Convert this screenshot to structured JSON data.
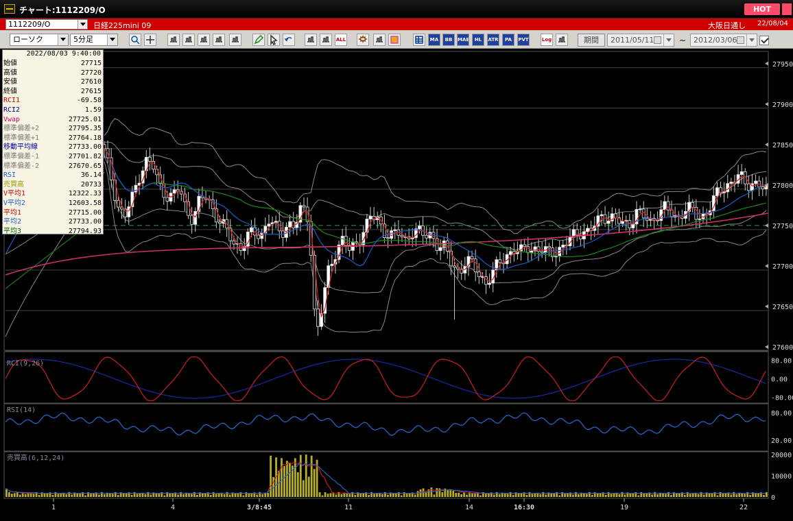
{
  "window": {
    "title": "チャート:1112209/O",
    "hot_label": "HOT"
  },
  "info_bar": {
    "symbol": "1112209/O",
    "instrument": "日経225mini 09",
    "market": "大阪日通し",
    "date": "22/08/04"
  },
  "toolbar": {
    "chart_type": "ローソク",
    "interval": "5分足",
    "indicator_buttons": [
      "MA",
      "BB",
      "MAE",
      "HL",
      "ATR",
      "PA RA",
      "PVT"
    ],
    "log_label": "Log",
    "all_label": "ALL",
    "period_label": "期間",
    "start_date": "2011/05/11",
    "end_date": "2012/03/06",
    "range_sep": "~"
  },
  "data_panel": {
    "timestamp": "2022/08/03 9:40:00",
    "rows": [
      {
        "label": "始値",
        "value": "27715",
        "color": "#000000"
      },
      {
        "label": "高値",
        "value": "27720",
        "color": "#000000"
      },
      {
        "label": "安値",
        "value": "27610",
        "color": "#000000"
      },
      {
        "label": "終値",
        "value": "27615",
        "color": "#000000"
      },
      {
        "label": "RCI1",
        "value": "-69.58",
        "color": "#cc0000"
      },
      {
        "label": "RCI2",
        "value": "1.59",
        "color": "#000099"
      },
      {
        "label": "Vwap",
        "value": "27725.01",
        "color": "#cc0066"
      },
      {
        "label": "標準偏差+2",
        "value": "27795.35",
        "color": "#777777"
      },
      {
        "label": "標準偏差+1",
        "value": "27764.18",
        "color": "#777777"
      },
      {
        "label": "移動平均線",
        "value": "27733.00",
        "color": "#000099"
      },
      {
        "label": "標準偏差-1",
        "value": "27701.82",
        "color": "#777777"
      },
      {
        "label": "標準偏差-2",
        "value": "27670.65",
        "color": "#777777"
      },
      {
        "label": "RSI",
        "value": "36.14",
        "color": "#1a5fc8"
      },
      {
        "label": "売買高",
        "value": "20733",
        "color": "#999900"
      },
      {
        "label": "V平均1",
        "value": "12322.33",
        "color": "#cc0000"
      },
      {
        "label": "V平均2",
        "value": "12603.58",
        "color": "#1a5fc8"
      },
      {
        "label": "平均1",
        "value": "27715.00",
        "color": "#cc0000"
      },
      {
        "label": "平均2",
        "value": "27733.00",
        "color": "#1a5fc8"
      },
      {
        "label": "平均3",
        "value": "27794.93",
        "color": "#006600"
      }
    ]
  },
  "panels": {
    "rci_label": "RCI(9,26)",
    "rsi_label": "RSI(14)",
    "volume_label": "売買高(6,12,24)"
  },
  "chart_data": [
    {
      "type": "candlestick",
      "ylim": [
        27600,
        27960
      ],
      "yticks": [
        27600,
        27650,
        27700,
        27750,
        27800,
        27850,
        27900,
        27950
      ],
      "reference_line": 27750,
      "x_ticks": [
        "1",
        "4",
        "3/8:45",
        "11",
        "14",
        "16:30",
        "19",
        "22"
      ],
      "close_path": [
        27840,
        27810,
        27775,
        27760,
        27780,
        27810,
        27830,
        27825,
        27800,
        27790,
        27785,
        27795,
        27770,
        27760,
        27780,
        27785,
        27770,
        27755,
        27740,
        27728,
        27725,
        27735,
        27740,
        27738,
        27760,
        27745,
        27740,
        27755,
        27750,
        27770,
        27760,
        27615,
        27650,
        27700,
        27720,
        27735,
        27715,
        27730,
        27745,
        27760,
        27755,
        27745,
        27738,
        27740,
        27730,
        27745,
        27742,
        27735,
        27740,
        27725,
        27720,
        27700,
        27695,
        27705,
        27700,
        27690,
        27680,
        27690,
        27705,
        27715,
        27720,
        27715,
        27725,
        27722,
        27718,
        27715,
        27720,
        27722,
        27728,
        27740,
        27745,
        27740,
        27750,
        27765,
        27760,
        27755,
        27752,
        27755,
        27765,
        27760,
        27755,
        27765,
        27770,
        27765,
        27760,
        27770,
        27768,
        27760,
        27765,
        27775,
        27790,
        27800,
        27805,
        27810,
        27800,
        27805,
        27800,
        27790
      ]
    },
    {
      "type": "line",
      "title": "RCI(9,26)",
      "ylim": [
        -100,
        100
      ],
      "yticks": [
        80,
        0,
        -80
      ]
    },
    {
      "type": "line",
      "title": "RSI(14)",
      "ylim": [
        0,
        100
      ],
      "yticks": [
        80,
        20
      ]
    },
    {
      "type": "bar",
      "title": "売買高(6,12,24)",
      "ylim": [
        0,
        20000
      ],
      "yticks": [
        20000,
        10000,
        0
      ]
    }
  ]
}
